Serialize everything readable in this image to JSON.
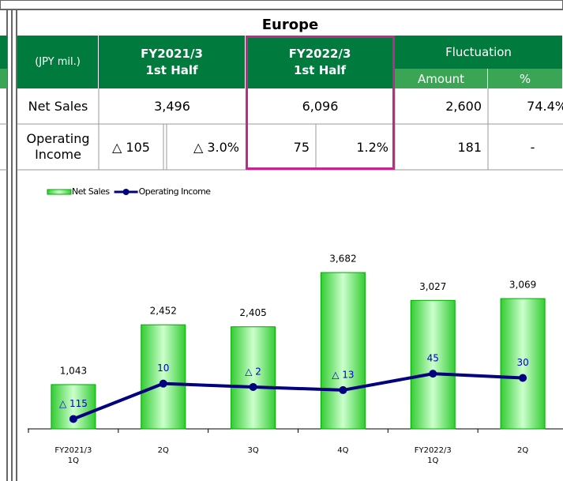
{
  "title": "Europe",
  "table": {
    "header": [
      "(JPY mil.)",
      "FY2021/3\n1st Half",
      "FY2022/3\n1st Half",
      "Fluctuation",
      "Amount",
      "%"
    ],
    "rows": [
      [
        "Net Sales",
        "3,496",
        "6,096",
        "2,600",
        "74.4%"
      ],
      [
        "Operating\nIncome",
        "△ 105",
        "△ 3.0%",
        "75",
        "1.2%",
        "181",
        "-"
      ]
    ]
  },
  "chart_data": {
    "type": "bar",
    "categories": [
      "FY2021/3\n1Q",
      "2Q",
      "3Q",
      "4Q",
      "FY2022/3\n1Q",
      "2Q"
    ],
    "ylim": [
      0,
      4000
    ],
    "y2lim": [
      -150,
      450
    ],
    "series": [
      {
        "name": "Net Sales",
        "type": "bar",
        "color": "#33cc33",
        "values": [
          1043,
          2452,
          2405,
          3682,
          3027,
          3069
        ],
        "value_labels": [
          "1,043",
          "2,452",
          "2,405",
          "3,682",
          "3,027",
          "3,069"
        ]
      },
      {
        "name": "Operating Income",
        "type": "line",
        "axis": "y2",
        "color": "#000080",
        "values": [
          -115,
          10,
          -2,
          -13,
          45,
          30
        ],
        "value_labels": [
          "△ 115",
          "10",
          "△ 2",
          "△ 13",
          "45",
          "30"
        ]
      }
    ]
  }
}
